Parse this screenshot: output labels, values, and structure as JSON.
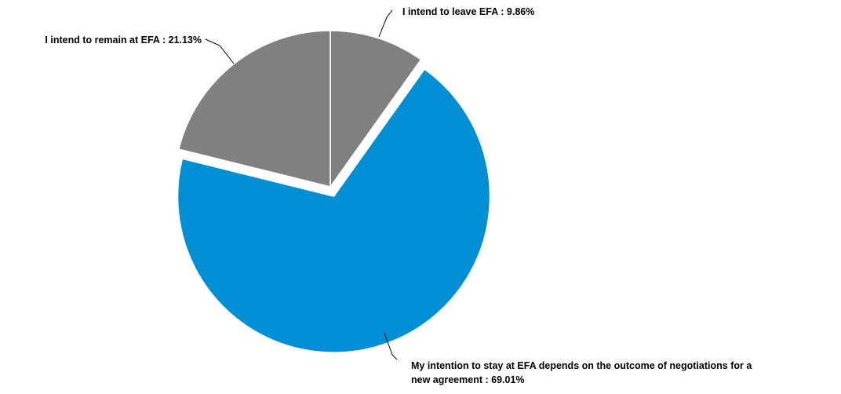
{
  "chart_data": {
    "type": "pie",
    "title": "",
    "start_angle_deg": 0,
    "direction": "clockwise",
    "slices": [
      {
        "label": "I intend to leave EFA",
        "value": 9.86,
        "display": "9.86%",
        "color": "#808080",
        "exploded": false,
        "label_lines": [
          "I intend to leave EFA : 9.86%"
        ]
      },
      {
        "label": "My intention to stay at EFA depends on the outcome of negotiations for a new agreement",
        "value": 69.01,
        "display": "69.01%",
        "color": "#008FD5",
        "exploded": true,
        "label_lines": [
          "My intention to stay at EFA depends on the outcome of negotiations for a",
          "new agreement : 69.01%"
        ]
      },
      {
        "label": "I intend to remain at EFA",
        "value": 21.13,
        "display": "21.13%",
        "color": "#808080",
        "exploded": false,
        "label_lines": [
          "I intend to remain at EFA : 21.13%"
        ]
      }
    ]
  }
}
